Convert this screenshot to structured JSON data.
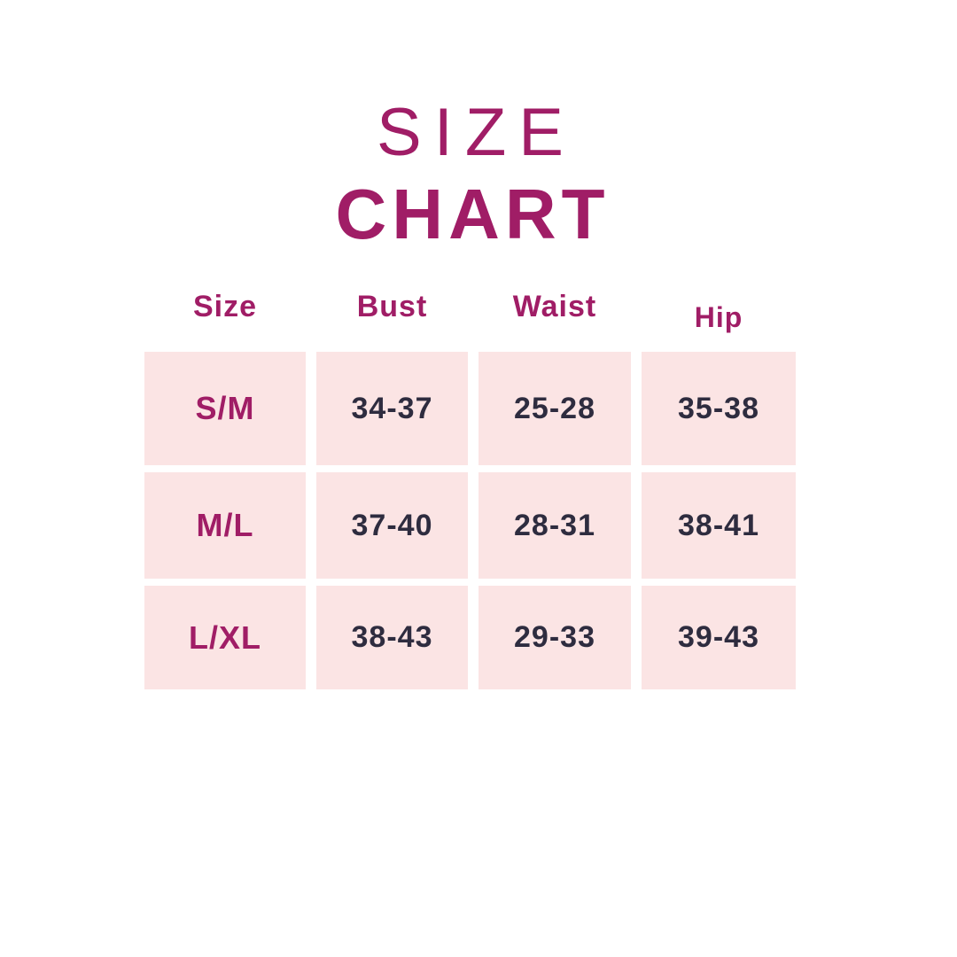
{
  "page": {
    "background": "#ffffff",
    "accent_color": "#a01d66",
    "value_text_color": "#2e2c3f",
    "cell_background": "#fbe4e4"
  },
  "title": {
    "line1": "SIZE",
    "line2": "CHART"
  },
  "chart_data": {
    "type": "table",
    "title": "SIZE CHART",
    "columns": [
      "Size",
      "Bust",
      "Waist",
      "Hip"
    ],
    "rows": [
      [
        "S/M",
        "34-37",
        "25-28",
        "35-38"
      ],
      [
        "M/L",
        "37-40",
        "28-31",
        "38-41"
      ],
      [
        "L/XL",
        "38-43",
        "29-33",
        "39-43"
      ]
    ]
  }
}
